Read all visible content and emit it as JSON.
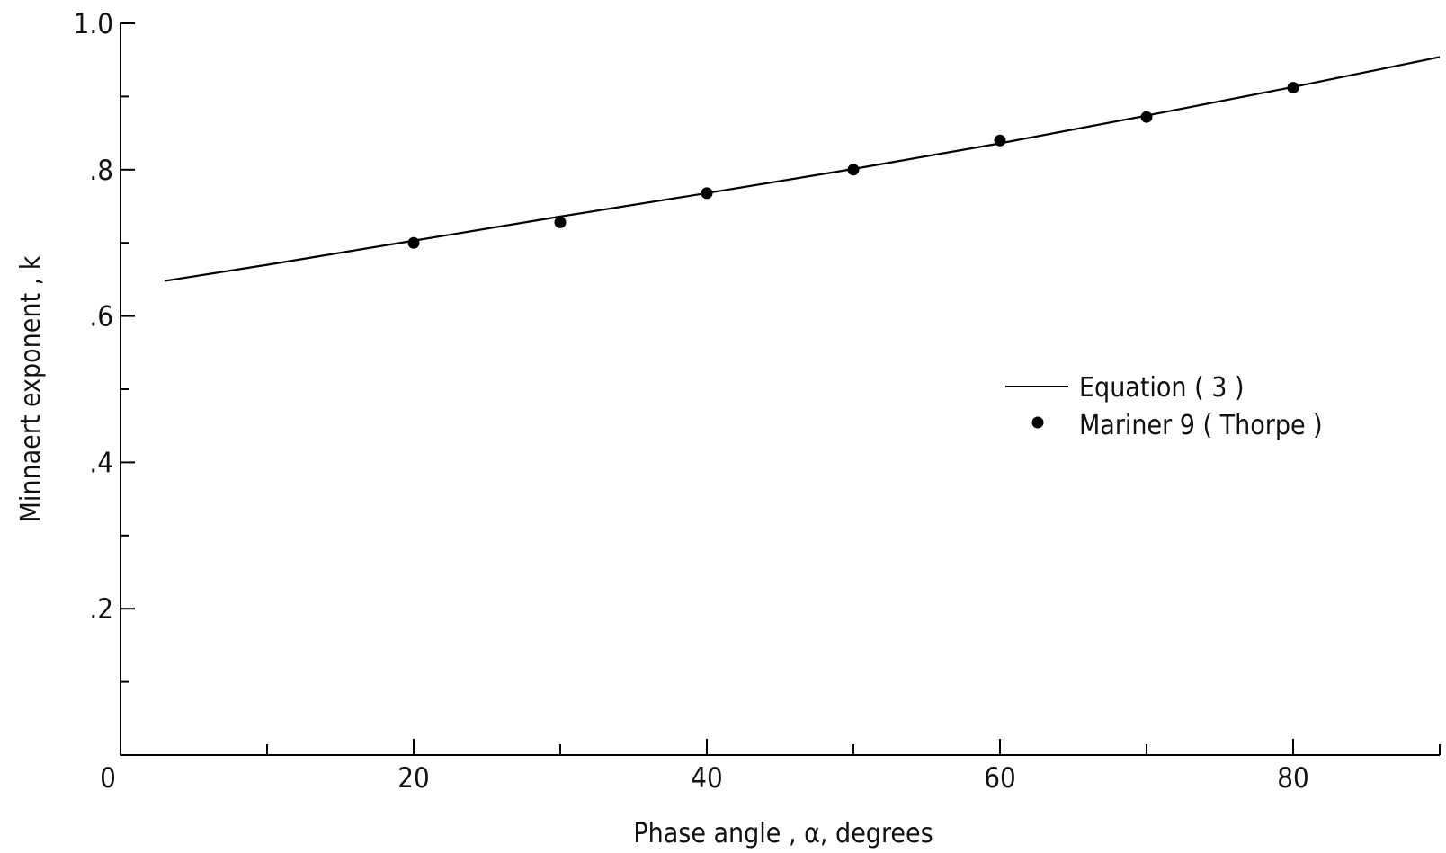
{
  "chart_data": {
    "type": "line",
    "xlabel": "Phase angle , α, degrees",
    "ylabel": "Minnaert exponent , k",
    "xlim": [
      0,
      90
    ],
    "ylim": [
      0,
      1.0
    ],
    "x_ticks_major": [
      0,
      20,
      40,
      60,
      80
    ],
    "x_tick_labels": [
      "0",
      "20",
      "40",
      "60",
      "80"
    ],
    "x_ticks_minor": [
      10,
      30,
      50,
      70,
      90
    ],
    "y_ticks_major": [
      0.2,
      0.4,
      0.6,
      0.8,
      1.0
    ],
    "y_tick_labels": [
      ".2",
      ".4",
      ".6",
      ".8",
      "1.0"
    ],
    "y_ticks_minor": [
      0.1,
      0.3,
      0.5,
      0.7,
      0.9
    ],
    "grid": false,
    "legend_position": "right",
    "series": [
      {
        "name": "Equation ( 3 )",
        "kind": "line",
        "color": "#000000",
        "x": [
          3,
          10,
          20,
          30,
          40,
          50,
          60,
          70,
          80,
          90
        ],
        "y": [
          0.648,
          0.67,
          0.703,
          0.736,
          0.768,
          0.801,
          0.836,
          0.874,
          0.913,
          0.954
        ]
      },
      {
        "name": "Mariner 9 ( Thorpe )",
        "kind": "scatter",
        "color": "#000000",
        "x": [
          20,
          30,
          40,
          50,
          60,
          70,
          80
        ],
        "y": [
          0.7,
          0.728,
          0.768,
          0.8,
          0.84,
          0.872,
          0.912
        ]
      }
    ]
  }
}
